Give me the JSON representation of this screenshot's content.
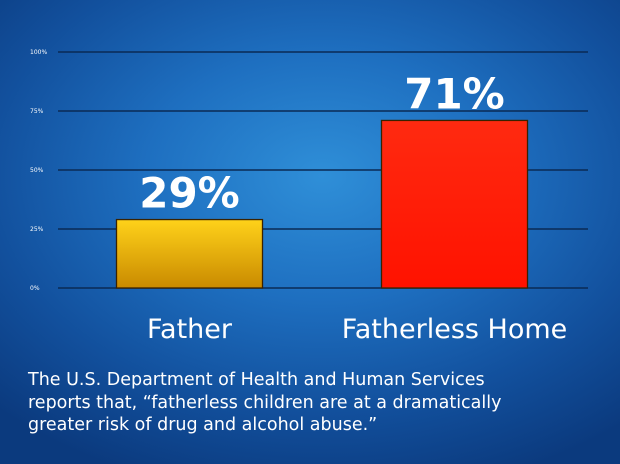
{
  "chart_data": {
    "type": "bar",
    "categories": [
      "Father",
      "Fatherless Home"
    ],
    "values": [
      29,
      71
    ],
    "value_labels": [
      "29%",
      "71%"
    ],
    "bar_colors": [
      "#f2b705",
      "#ff1a00"
    ],
    "ylim": [
      0,
      100
    ],
    "yticks": [
      0,
      25,
      50,
      75,
      100
    ],
    "ytick_labels": [
      "0%",
      "25%",
      "50%",
      "75%",
      "100%"
    ],
    "grid": true,
    "title": "",
    "xlabel": "",
    "ylabel": ""
  },
  "caption": {
    "lines": [
      "The U.S. Department of Health and Human Services",
      "reports that, “fatherless children are at a dramatically",
      "greater risk of drug and alcohol abuse.”"
    ]
  }
}
